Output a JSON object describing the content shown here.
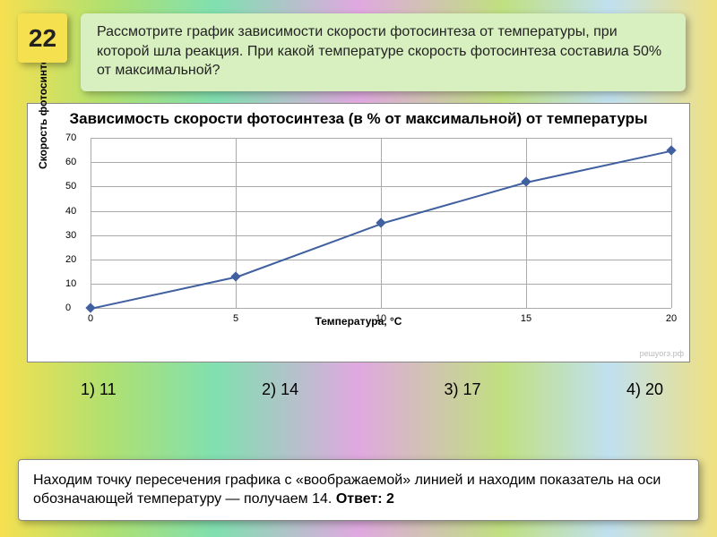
{
  "badge": {
    "number": "22"
  },
  "question": {
    "text": "Рассмотрите график зависимости скорости фотосинтеза от температуры, при которой шла реакция. При какой температуре скорость фотосинтеза составила 50% от максимальной?"
  },
  "chart": {
    "type": "line",
    "title": "Зависимость скорости фотосинтеза (в % от максимальной) от температуры",
    "xlabel": "Температура, °С",
    "ylabel": "Скорость фотосинтеза, %",
    "ylim": [
      0,
      70
    ],
    "yticks": [
      0,
      10,
      20,
      30,
      40,
      50,
      60,
      70
    ],
    "xlim": [
      0,
      20
    ],
    "xticks": [
      0,
      5,
      10,
      15,
      20
    ],
    "grid_color": "#aaaaaa",
    "background_color": "#ffffff",
    "line_color": "#4060a0",
    "marker_color": "#4060a0",
    "marker_style": "diamond",
    "line_width": 2,
    "data": {
      "x": [
        0,
        5,
        10,
        15,
        20
      ],
      "y": [
        0,
        13,
        35,
        52,
        65
      ]
    },
    "watermark": "решуогэ.рф"
  },
  "options": [
    {
      "label": "1) 11"
    },
    {
      "label": "2) 14"
    },
    {
      "label": "3) 17"
    },
    {
      "label": "4) 20"
    }
  ],
  "explanation": {
    "text": "Находим точку пересечения графика с «воображаемой» линией и находим показатель на оси обозначающей температуру — получаем 14.",
    "answer_label": "Ответ: 2"
  }
}
